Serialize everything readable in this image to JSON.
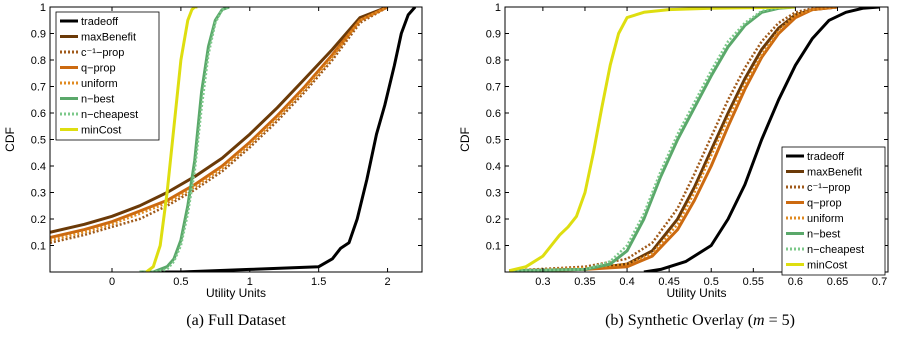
{
  "captions": [
    "(a)  Full Dataset",
    "(b)  Synthetic Overlay (",
    "m",
    " = 5)"
  ],
  "colors": {
    "tradeoff": "#000000",
    "maxBenefit": "#6b3a08",
    "c-prop": "#a05a1a",
    "q-prop": "#cc6a10",
    "uniform": "#e08a20",
    "n-best": "#5aa86a",
    "n-cheapest": "#7cc88a",
    "minCost": "#dede10"
  },
  "chart_data": [
    {
      "type": "line",
      "xlabel": "Utility Units",
      "ylabel": "CDF",
      "xlim": [
        -0.45,
        2.25
      ],
      "ylim": [
        0,
        1
      ],
      "xticks": [
        0,
        0.5,
        1,
        1.5,
        2
      ],
      "xtick_labels": [
        "0",
        "0.5",
        "1",
        "1.5",
        "2"
      ],
      "yticks": [
        0.1,
        0.2,
        0.3,
        0.4,
        0.5,
        0.6,
        0.7,
        0.8,
        0.9,
        1
      ],
      "ytick_labels": [
        "0.1",
        "0.2",
        "0.3",
        "0.4",
        "0.5",
        "0.6",
        "0.7",
        "0.8",
        "0.9",
        "1"
      ],
      "grid": false,
      "legend_position": "top-left",
      "series": [
        {
          "name": "tradeoff",
          "style": "solid",
          "x": [
            0.2,
            0.5,
            1.0,
            1.5,
            1.6,
            1.66,
            1.72,
            1.78,
            1.85,
            1.92,
            1.98,
            2.05,
            2.1,
            2.15,
            2.2
          ],
          "y": [
            0,
            0,
            0.01,
            0.02,
            0.05,
            0.09,
            0.11,
            0.2,
            0.35,
            0.52,
            0.63,
            0.78,
            0.9,
            0.97,
            1
          ]
        },
        {
          "name": "maxBenefit",
          "style": "solid",
          "x": [
            -0.45,
            -0.2,
            0.0,
            0.2,
            0.4,
            0.6,
            0.8,
            1.0,
            1.2,
            1.4,
            1.6,
            1.8,
            2.0
          ],
          "y": [
            0.15,
            0.18,
            0.21,
            0.25,
            0.3,
            0.36,
            0.43,
            0.52,
            0.62,
            0.73,
            0.84,
            0.96,
            1
          ]
        },
        {
          "name": "c⁻¹−prop",
          "style": "dotted",
          "x": [
            -0.45,
            -0.2,
            0.0,
            0.2,
            0.4,
            0.6,
            0.8,
            1.0,
            1.2,
            1.4,
            1.6,
            1.8,
            2.0
          ],
          "y": [
            0.11,
            0.14,
            0.17,
            0.2,
            0.25,
            0.31,
            0.38,
            0.47,
            0.57,
            0.68,
            0.8,
            0.94,
            1
          ]
        },
        {
          "name": "q−prop",
          "style": "solid",
          "x": [
            -0.45,
            -0.2,
            0.0,
            0.2,
            0.4,
            0.6,
            0.8,
            1.0,
            1.2,
            1.4,
            1.6,
            1.8,
            2.0
          ],
          "y": [
            0.13,
            0.16,
            0.19,
            0.23,
            0.27,
            0.33,
            0.4,
            0.49,
            0.59,
            0.7,
            0.82,
            0.95,
            1
          ]
        },
        {
          "name": "uniform",
          "style": "dotted",
          "x": [
            -0.45,
            -0.2,
            0.0,
            0.2,
            0.4,
            0.6,
            0.8,
            1.0,
            1.2,
            1.4,
            1.6,
            1.8,
            2.0
          ],
          "y": [
            0.12,
            0.15,
            0.18,
            0.22,
            0.26,
            0.32,
            0.39,
            0.48,
            0.58,
            0.69,
            0.81,
            0.95,
            1
          ]
        },
        {
          "name": "n−best",
          "style": "solid",
          "x": [
            0.2,
            0.3,
            0.4,
            0.45,
            0.5,
            0.55,
            0.6,
            0.65,
            0.7,
            0.75,
            0.8,
            0.85
          ],
          "y": [
            0,
            0,
            0.02,
            0.05,
            0.12,
            0.25,
            0.42,
            0.68,
            0.85,
            0.95,
            0.99,
            1
          ]
        },
        {
          "name": "n−cheapest",
          "style": "dotted",
          "x": [
            0.2,
            0.3,
            0.4,
            0.45,
            0.5,
            0.55,
            0.6,
            0.65,
            0.7,
            0.75,
            0.8,
            0.85
          ],
          "y": [
            0,
            0,
            0.01,
            0.04,
            0.1,
            0.22,
            0.38,
            0.62,
            0.82,
            0.94,
            0.99,
            1
          ]
        },
        {
          "name": "minCost",
          "style": "solid",
          "x": [
            0.25,
            0.3,
            0.35,
            0.4,
            0.45,
            0.5,
            0.55,
            0.58,
            0.6,
            0.62
          ],
          "y": [
            0,
            0.02,
            0.1,
            0.3,
            0.55,
            0.8,
            0.95,
            0.99,
            1,
            1
          ]
        }
      ]
    },
    {
      "type": "line",
      "xlabel": "Utility Units",
      "ylabel": "CDF",
      "xlim": [
        0.255,
        0.71
      ],
      "ylim": [
        0,
        1
      ],
      "xticks": [
        0.3,
        0.35,
        0.4,
        0.45,
        0.5,
        0.55,
        0.6,
        0.65,
        0.7
      ],
      "xtick_labels": [
        "0.3",
        "0.35",
        "0.4",
        "0.45",
        "0.5",
        "0.55",
        "0.6",
        "0.65",
        "0.7"
      ],
      "yticks": [
        0.1,
        0.2,
        0.3,
        0.4,
        0.5,
        0.6,
        0.7,
        0.8,
        0.9,
        1
      ],
      "ytick_labels": [
        "0.1",
        "0.2",
        "0.3",
        "0.4",
        "0.5",
        "0.6",
        "0.7",
        "0.8",
        "0.9",
        "1"
      ],
      "grid": false,
      "legend_position": "bottom-right",
      "series": [
        {
          "name": "tradeoff",
          "style": "solid",
          "x": [
            0.42,
            0.44,
            0.47,
            0.5,
            0.52,
            0.54,
            0.56,
            0.58,
            0.6,
            0.62,
            0.64,
            0.66,
            0.68,
            0.7
          ],
          "y": [
            0,
            0.01,
            0.04,
            0.1,
            0.2,
            0.33,
            0.5,
            0.65,
            0.78,
            0.88,
            0.95,
            0.98,
            0.995,
            1
          ]
        },
        {
          "name": "maxBenefit",
          "style": "solid",
          "x": [
            0.26,
            0.35,
            0.4,
            0.43,
            0.46,
            0.48,
            0.5,
            0.52,
            0.54,
            0.56,
            0.58,
            0.6,
            0.62,
            0.65
          ],
          "y": [
            0.005,
            0.01,
            0.03,
            0.08,
            0.2,
            0.32,
            0.46,
            0.6,
            0.73,
            0.84,
            0.92,
            0.97,
            0.99,
            1
          ]
        },
        {
          "name": "c⁻¹−prop",
          "style": "dotted",
          "x": [
            0.26,
            0.35,
            0.4,
            0.43,
            0.46,
            0.48,
            0.5,
            0.52,
            0.54,
            0.56,
            0.58,
            0.6,
            0.62,
            0.65
          ],
          "y": [
            0.005,
            0.02,
            0.05,
            0.11,
            0.24,
            0.37,
            0.51,
            0.65,
            0.77,
            0.87,
            0.94,
            0.98,
            0.995,
            1
          ]
        },
        {
          "name": "q−prop",
          "style": "solid",
          "x": [
            0.26,
            0.35,
            0.4,
            0.43,
            0.46,
            0.48,
            0.5,
            0.52,
            0.54,
            0.56,
            0.58,
            0.6,
            0.62,
            0.65
          ],
          "y": [
            0.005,
            0.01,
            0.02,
            0.06,
            0.16,
            0.27,
            0.4,
            0.55,
            0.69,
            0.81,
            0.9,
            0.96,
            0.99,
            1
          ]
        },
        {
          "name": "uniform",
          "style": "dotted",
          "x": [
            0.26,
            0.35,
            0.4,
            0.43,
            0.46,
            0.48,
            0.5,
            0.52,
            0.54,
            0.56,
            0.58,
            0.6,
            0.62,
            0.65
          ],
          "y": [
            0.005,
            0.015,
            0.03,
            0.07,
            0.18,
            0.3,
            0.44,
            0.58,
            0.71,
            0.82,
            0.91,
            0.97,
            0.99,
            1
          ]
        },
        {
          "name": "n−best",
          "style": "solid",
          "x": [
            0.26,
            0.35,
            0.38,
            0.4,
            0.42,
            0.44,
            0.46,
            0.48,
            0.5,
            0.52,
            0.54,
            0.56,
            0.58,
            0.6
          ],
          "y": [
            0.005,
            0.01,
            0.03,
            0.08,
            0.2,
            0.36,
            0.5,
            0.62,
            0.74,
            0.85,
            0.93,
            0.98,
            0.995,
            1
          ]
        },
        {
          "name": "n−cheapest",
          "style": "dotted",
          "x": [
            0.26,
            0.35,
            0.38,
            0.4,
            0.42,
            0.44,
            0.46,
            0.48,
            0.5,
            0.52,
            0.54,
            0.56,
            0.58,
            0.6
          ],
          "y": [
            0.005,
            0.01,
            0.04,
            0.1,
            0.22,
            0.38,
            0.52,
            0.64,
            0.76,
            0.87,
            0.94,
            0.985,
            0.997,
            1
          ]
        },
        {
          "name": "minCost",
          "style": "solid",
          "x": [
            0.26,
            0.28,
            0.3,
            0.31,
            0.32,
            0.33,
            0.34,
            0.35,
            0.36,
            0.37,
            0.38,
            0.39,
            0.4,
            0.42,
            0.45,
            0.5,
            0.6
          ],
          "y": [
            0.005,
            0.02,
            0.06,
            0.1,
            0.14,
            0.17,
            0.21,
            0.3,
            0.45,
            0.62,
            0.78,
            0.9,
            0.96,
            0.98,
            0.99,
            0.995,
            1
          ]
        }
      ]
    }
  ]
}
